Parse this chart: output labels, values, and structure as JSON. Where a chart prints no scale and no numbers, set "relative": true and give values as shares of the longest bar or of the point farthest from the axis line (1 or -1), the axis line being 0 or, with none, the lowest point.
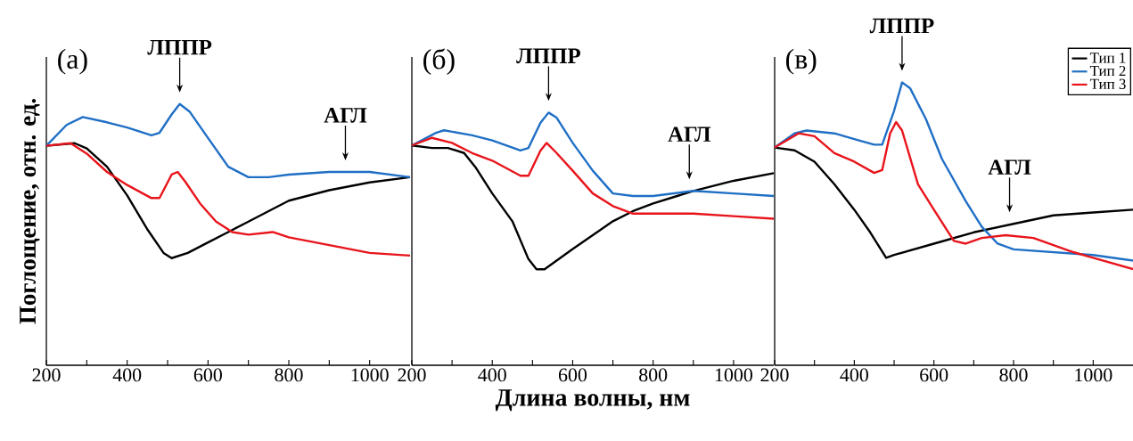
{
  "chart_data": [
    {
      "type": "line",
      "title": "(а)",
      "ylabel": "Поглощение, отн. ед.",
      "relative": true,
      "xlim": [
        200,
        1100
      ],
      "xticks": [
        200,
        {
          "value": 300,
          "label": null
        },
        400,
        {
          "value": 500,
          "label": null
        },
        600,
        {
          "value": 700,
          "label": null
        },
        800,
        {
          "value": 900,
          "label": null
        },
        1000
      ],
      "annotations": [
        {
          "text": "ЛППР",
          "x": 530,
          "y": 1.0
        },
        {
          "text": "АГЛ",
          "x": 940,
          "y": 0.74
        }
      ],
      "series": [
        {
          "color": "#000000",
          "x": [
            200,
            270,
            300,
            350,
            400,
            450,
            490,
            510,
            550,
            600,
            650,
            700,
            800,
            900,
            1000,
            1100
          ],
          "values": [
            0.84,
            0.85,
            0.83,
            0.76,
            0.65,
            0.52,
            0.43,
            0.41,
            0.43,
            0.47,
            0.51,
            0.55,
            0.63,
            0.67,
            0.7,
            0.72
          ]
        },
        {
          "color": "#1f6fc5",
          "x": [
            200,
            250,
            290,
            350,
            400,
            460,
            480,
            510,
            530,
            555,
            600,
            650,
            700,
            750,
            800,
            900,
            1000,
            1100
          ],
          "values": [
            0.84,
            0.92,
            0.95,
            0.93,
            0.91,
            0.88,
            0.89,
            0.96,
            1.0,
            0.97,
            0.87,
            0.76,
            0.72,
            0.72,
            0.73,
            0.74,
            0.74,
            0.72
          ]
        },
        {
          "color": "#e8141b",
          "x": [
            200,
            260,
            300,
            350,
            400,
            460,
            480,
            510,
            525,
            545,
            580,
            620,
            660,
            700,
            760,
            800,
            900,
            1000,
            1100
          ],
          "values": [
            0.84,
            0.85,
            0.81,
            0.74,
            0.69,
            0.64,
            0.64,
            0.73,
            0.74,
            0.7,
            0.62,
            0.55,
            0.51,
            0.5,
            0.51,
            0.49,
            0.46,
            0.43,
            0.42
          ]
        }
      ]
    },
    {
      "type": "line",
      "title": "(б)",
      "xlabel": "Длина волны, нм",
      "relative": true,
      "xlim": [
        200,
        1100
      ],
      "xticks": [
        200,
        {
          "value": 300,
          "label": null
        },
        400,
        {
          "value": 500,
          "label": null
        },
        600,
        {
          "value": 700,
          "label": null
        },
        800,
        {
          "value": 900,
          "label": null
        },
        1000
      ],
      "annotations": [
        {
          "text": "ЛППР",
          "x": 540,
          "y": 1.0
        },
        {
          "text": "АГЛ",
          "x": 890,
          "y": 0.69
        }
      ],
      "series": [
        {
          "color": "#000000",
          "x": [
            200,
            250,
            290,
            330,
            360,
            400,
            450,
            490,
            510,
            530,
            600,
            700,
            750,
            800,
            900,
            1000,
            1100
          ],
          "values": [
            0.87,
            0.86,
            0.86,
            0.84,
            0.78,
            0.68,
            0.57,
            0.42,
            0.38,
            0.38,
            0.46,
            0.57,
            0.61,
            0.64,
            0.69,
            0.73,
            0.76
          ]
        },
        {
          "color": "#1f6fc5",
          "x": [
            200,
            260,
            280,
            350,
            400,
            470,
            490,
            520,
            540,
            560,
            600,
            650,
            700,
            750,
            800,
            900,
            1000,
            1100
          ],
          "values": [
            0.87,
            0.92,
            0.93,
            0.91,
            0.89,
            0.85,
            0.86,
            0.96,
            1.0,
            0.98,
            0.88,
            0.77,
            0.68,
            0.67,
            0.67,
            0.69,
            0.68,
            0.67
          ]
        },
        {
          "color": "#e8141b",
          "x": [
            200,
            250,
            300,
            350,
            400,
            470,
            490,
            520,
            535,
            560,
            600,
            650,
            700,
            750,
            800,
            900,
            1000,
            1100
          ],
          "values": [
            0.87,
            0.9,
            0.88,
            0.84,
            0.81,
            0.75,
            0.75,
            0.85,
            0.88,
            0.84,
            0.77,
            0.68,
            0.63,
            0.6,
            0.6,
            0.6,
            0.59,
            0.58
          ]
        }
      ]
    },
    {
      "type": "line",
      "title": "(в)",
      "relative": true,
      "xlim": [
        200,
        1100
      ],
      "legend": "top right",
      "xticks": [
        200,
        {
          "value": 300,
          "label": null
        },
        400,
        {
          "value": 500,
          "label": null
        },
        600,
        {
          "value": 700,
          "label": null
        },
        800,
        {
          "value": 900,
          "label": null
        },
        1000
      ],
      "annotations": [
        {
          "text": "ЛППР",
          "x": 520,
          "y": 1.0
        },
        {
          "text": "АГЛ",
          "x": 790,
          "y": 0.5
        }
      ],
      "series": [
        {
          "name": "Тип 1",
          "color": "#000000",
          "x": [
            200,
            250,
            300,
            350,
            400,
            440,
            480,
            500,
            600,
            700,
            800,
            900,
            1000,
            1100
          ],
          "values": [
            0.77,
            0.76,
            0.72,
            0.64,
            0.55,
            0.47,
            0.38,
            0.39,
            0.43,
            0.47,
            0.5,
            0.53,
            0.54,
            0.55
          ]
        },
        {
          "name": "Тип 2",
          "color": "#1f6fc5",
          "x": [
            200,
            250,
            280,
            350,
            400,
            450,
            470,
            500,
            520,
            540,
            580,
            620,
            680,
            720,
            760,
            800,
            900,
            1000,
            1100
          ],
          "values": [
            0.77,
            0.82,
            0.83,
            0.82,
            0.8,
            0.78,
            0.78,
            0.9,
            1.0,
            0.98,
            0.87,
            0.73,
            0.58,
            0.49,
            0.43,
            0.41,
            0.4,
            0.39,
            0.37
          ]
        },
        {
          "name": "Тип 3",
          "color": "#e8141b",
          "x": [
            200,
            260,
            300,
            350,
            400,
            450,
            470,
            490,
            505,
            520,
            560,
            600,
            650,
            680,
            720,
            780,
            850,
            950,
            1000,
            1100
          ],
          "values": [
            0.77,
            0.82,
            0.81,
            0.75,
            0.72,
            0.68,
            0.69,
            0.82,
            0.86,
            0.83,
            0.64,
            0.55,
            0.44,
            0.43,
            0.45,
            0.46,
            0.45,
            0.4,
            0.38,
            0.34
          ]
        }
      ]
    }
  ]
}
